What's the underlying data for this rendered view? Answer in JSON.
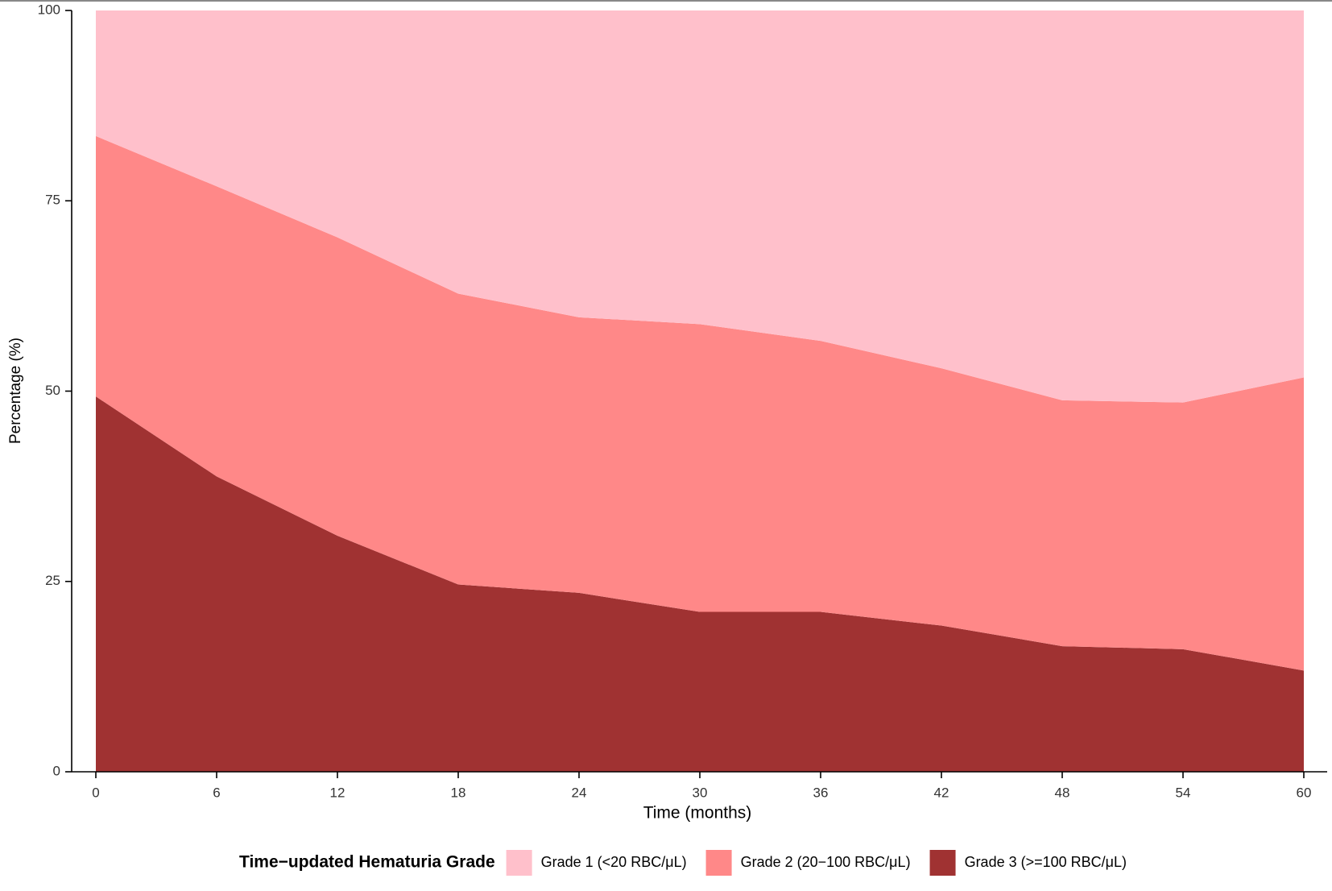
{
  "chart_data": {
    "type": "area",
    "stacked": true,
    "x_label": "Time (months)",
    "y_label": "Percentage (%)",
    "legend_title": "Time−updated Hematuria Grade",
    "legend_position": "bottom",
    "x": [
      0,
      6,
      12,
      18,
      24,
      30,
      36,
      42,
      48,
      54,
      60
    ],
    "series": [
      {
        "name": "Grade 1 (<20 RBC/μL)",
        "color": "#ffc0cb",
        "values": [
          16.5,
          23.1,
          29.8,
          37.2,
          40.3,
          41.2,
          43.4,
          47.0,
          51.2,
          51.5,
          48.2
        ]
      },
      {
        "name": "Grade 2 (20−100 RBC/μL)",
        "color": "#ff8888",
        "values": [
          34.2,
          38.1,
          39.2,
          38.2,
          36.2,
          37.8,
          35.6,
          33.8,
          32.3,
          32.4,
          38.5
        ]
      },
      {
        "name": "Grade 3 (>=100 RBC/μL)",
        "color": "#a03232",
        "values": [
          49.3,
          38.8,
          31.0,
          24.6,
          23.5,
          21.0,
          21.0,
          19.2,
          16.5,
          16.1,
          13.3
        ]
      }
    ],
    "xlim": [
      0,
      60
    ],
    "xticks": [
      0,
      6,
      12,
      18,
      24,
      30,
      36,
      42,
      48,
      54,
      60
    ],
    "ylim": [
      0,
      100
    ],
    "yticks": [
      0,
      25,
      50,
      75,
      100
    ]
  }
}
